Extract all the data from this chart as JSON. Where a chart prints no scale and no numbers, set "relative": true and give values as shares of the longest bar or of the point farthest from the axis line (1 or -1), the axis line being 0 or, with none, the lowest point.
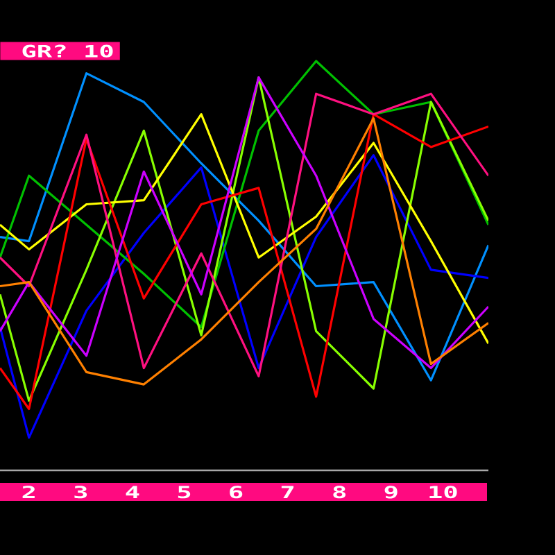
{
  "chart_data": {
    "type": "line",
    "title": "GR? 10",
    "x": [
      1.44,
      2,
      3.11,
      4.22,
      5.33,
      6.44,
      7.55,
      8.66,
      9.77,
      10.88
    ],
    "xlim": [
      1.44,
      10.88
    ],
    "xticks": [
      2,
      3,
      4,
      5,
      6,
      7,
      8,
      9,
      10
    ],
    "relative": true,
    "line_style": "solid",
    "series": [
      {
        "color": "#0090ff",
        "values": [
          0.57,
          0.56,
          0.97,
          0.9,
          0.75,
          0.61,
          0.45,
          0.46,
          0.22,
          0.55
        ]
      },
      {
        "color": "#0000ff",
        "values": [
          0.35,
          0.08,
          0.39,
          0.58,
          0.74,
          0.25,
          0.57,
          0.77,
          0.49,
          0.47
        ]
      },
      {
        "color": "#00c000",
        "values": [
          0.52,
          0.72,
          0.6,
          0.48,
          0.35,
          0.83,
          1.0,
          0.87,
          0.9,
          0.6
        ]
      },
      {
        "color": "#88ff00",
        "values": [
          0.43,
          0.17,
          0.49,
          0.83,
          0.33,
          0.96,
          0.34,
          0.2,
          0.9,
          0.61
        ]
      },
      {
        "color": "#ffff00",
        "values": [
          0.6,
          0.54,
          0.65,
          0.66,
          0.87,
          0.52,
          0.62,
          0.8,
          0.56,
          0.31
        ]
      },
      {
        "color": "#ff0000",
        "values": [
          0.25,
          0.15,
          0.81,
          0.42,
          0.65,
          0.69,
          0.18,
          0.87,
          0.79,
          0.84
        ]
      },
      {
        "color": "#ff1080",
        "values": [
          0.52,
          0.45,
          0.82,
          0.25,
          0.53,
          0.23,
          0.92,
          0.87,
          0.92,
          0.72
        ]
      },
      {
        "color": "#cc00ff",
        "values": [
          0.34,
          0.46,
          0.28,
          0.73,
          0.43,
          0.96,
          0.72,
          0.37,
          0.25,
          0.4
        ]
      },
      {
        "color": "#ff8000",
        "values": [
          0.45,
          0.46,
          0.24,
          0.21,
          0.32,
          0.46,
          0.59,
          0.86,
          0.26,
          0.36
        ]
      }
    ]
  }
}
